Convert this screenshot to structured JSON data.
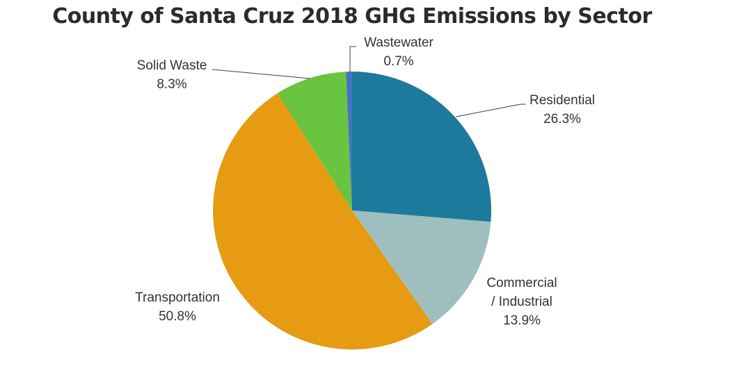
{
  "chart_data": {
    "type": "pie",
    "title": "County of Santa Cruz 2018 GHG Emissions by Sector",
    "slices": [
      {
        "label_lines": [
          "Residential"
        ],
        "value": 26.3,
        "value_label": "26.3%",
        "color": "#1e7a9c"
      },
      {
        "label_lines": [
          "Commercial",
          "/ Industrial"
        ],
        "value": 13.9,
        "value_label": "13.9%",
        "color": "#9fbfbf"
      },
      {
        "label_lines": [
          "Transportation"
        ],
        "value": 50.8,
        "value_label": "50.8%",
        "color": "#e69b12"
      },
      {
        "label_lines": [
          "Solid Waste"
        ],
        "value": 8.3,
        "value_label": "8.3%",
        "color": "#69c43f"
      },
      {
        "label_lines": [
          "Wastewater"
        ],
        "value": 0.7,
        "value_label": "0.7%",
        "color": "#4472c4"
      }
    ],
    "start_angle": "12 o'clock",
    "direction": "clockwise",
    "legend": "none",
    "leader_color": "#404040"
  }
}
